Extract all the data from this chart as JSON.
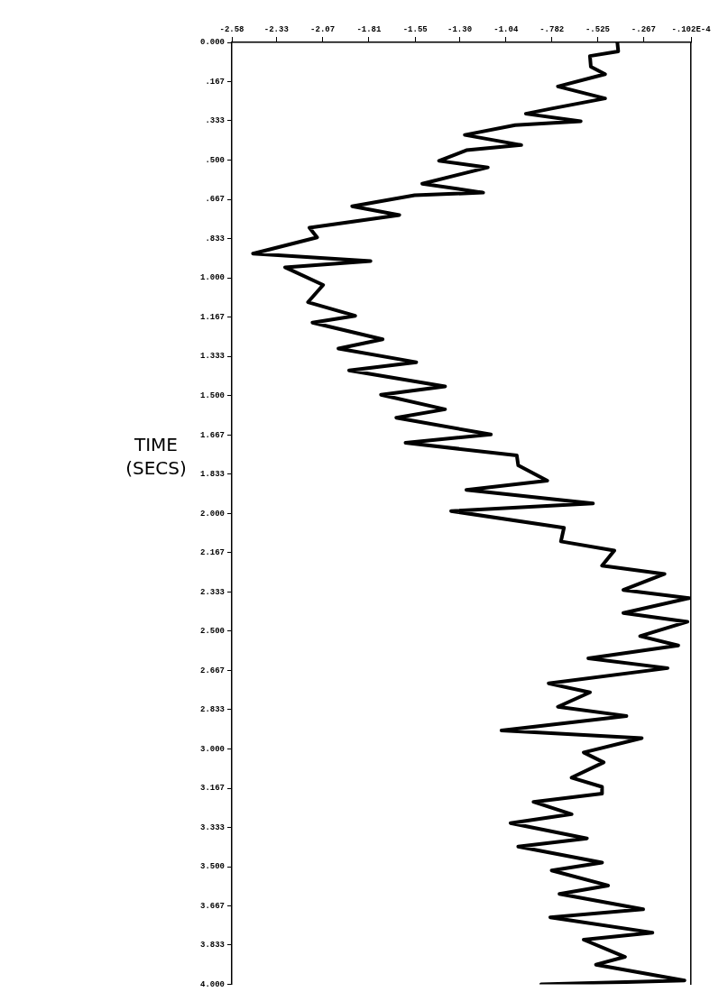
{
  "chart_data": {
    "type": "line",
    "ylabel": "TIME\n(SECS)",
    "xlim": [
      -2.58,
      -1.02e-05
    ],
    "xticks": [
      -2.58,
      -2.33,
      -2.07,
      -1.81,
      -1.55,
      {
        "value": -1.3,
        "label": "-1.30"
      },
      -1.04,
      {
        "value": -0.782,
        "label": "-.782"
      },
      {
        "value": -0.525,
        "label": "-.525"
      },
      {
        "value": -0.267,
        "label": "-.267"
      },
      {
        "value": -1.02e-05,
        "label": "-.102E-4"
      }
    ],
    "ylim": [
      4,
      0
    ],
    "yticks": [
      {
        "value": 0,
        "label": "0.000"
      },
      {
        "value": 0.167,
        "label": ".167"
      },
      {
        "value": 0.333,
        "label": ".333"
      },
      {
        "value": 0.5,
        "label": ".500"
      },
      {
        "value": 0.667,
        "label": ".667"
      },
      {
        "value": 0.833,
        "label": ".833"
      },
      {
        "value": 1,
        "label": "1.000"
      },
      1.167,
      1.333,
      {
        "value": 1.5,
        "label": "1.500"
      },
      1.667,
      1.833,
      {
        "value": 2,
        "label": "2.000"
      },
      2.167,
      2.333,
      {
        "value": 2.5,
        "label": "2.500"
      },
      2.667,
      2.833,
      {
        "value": 3,
        "label": "3.000"
      },
      3.167,
      3.333,
      {
        "value": 3.5,
        "label": "3.500"
      },
      3.667,
      3.833,
      {
        "value": 4,
        "label": "4.000"
      }
    ],
    "series": [
      {
        "color": "#000000",
        "x": [
          -0.414,
          -0.409,
          -0.568,
          -0.563,
          -0.483,
          -0.748,
          -0.483,
          -0.783,
          -0.928,
          -0.62,
          -0.988,
          -1.271,
          -0.954,
          -1.262,
          -1.416,
          -1.142,
          -1.51,
          -1.168,
          -1.553,
          -1.904,
          -1.639,
          -2.144,
          -2.101,
          -2.461,
          -1.801,
          -2.281,
          -2.067,
          -2.152,
          -1.887,
          -2.127,
          -1.733,
          -1.981,
          -1.544,
          -1.921,
          -1.382,
          -1.742,
          -1.382,
          -1.656,
          -1.125,
          -1.604,
          -0.979,
          -0.971,
          -0.808,
          -1.262,
          -0.551,
          -1.348,
          -0.714,
          -0.731,
          -0.431,
          -0.5,
          -0.149,
          -0.38,
          -0.01,
          -0.38,
          -0.02,
          -0.286,
          -0.072,
          -0.577,
          -0.132,
          -0.8,
          -0.568,
          -0.748,
          -0.363,
          -1.065,
          -0.277,
          -0.603,
          -0.491,
          -0.671,
          -0.5,
          -0.5,
          -0.885,
          -0.671,
          -1.014,
          -0.585,
          -0.971,
          -0.5,
          -0.783,
          -0.466,
          -0.739,
          -0.269,
          -0.791,
          -0.217,
          -0.603,
          -0.371,
          -0.534,
          -0.037,
          -0.842
        ],
        "values": [
          0,
          0.038,
          0.058,
          0.103,
          0.135,
          0.187,
          0.238,
          0.281,
          0.303,
          0.335,
          0.351,
          0.393,
          0.436,
          0.458,
          0.503,
          0.531,
          0.6,
          0.638,
          0.649,
          0.696,
          0.733,
          0.787,
          0.828,
          0.897,
          0.929,
          0.955,
          1.03,
          1.103,
          1.161,
          1.19,
          1.261,
          1.3,
          1.358,
          1.393,
          1.461,
          1.496,
          1.558,
          1.594,
          1.665,
          1.7,
          1.754,
          1.796,
          1.861,
          1.9,
          1.958,
          1.99,
          2.061,
          2.119,
          2.158,
          2.222,
          2.257,
          2.325,
          2.36,
          2.423,
          2.46,
          2.521,
          2.561,
          2.615,
          2.657,
          2.722,
          2.76,
          2.821,
          2.86,
          2.922,
          2.954,
          3.015,
          3.057,
          3.122,
          3.161,
          3.19,
          3.225,
          3.277,
          3.315,
          3.38,
          3.415,
          3.483,
          3.516,
          3.58,
          3.616,
          3.681,
          3.715,
          3.78,
          3.81,
          3.883,
          3.916,
          3.983,
          4.0
        ]
      }
    ]
  }
}
